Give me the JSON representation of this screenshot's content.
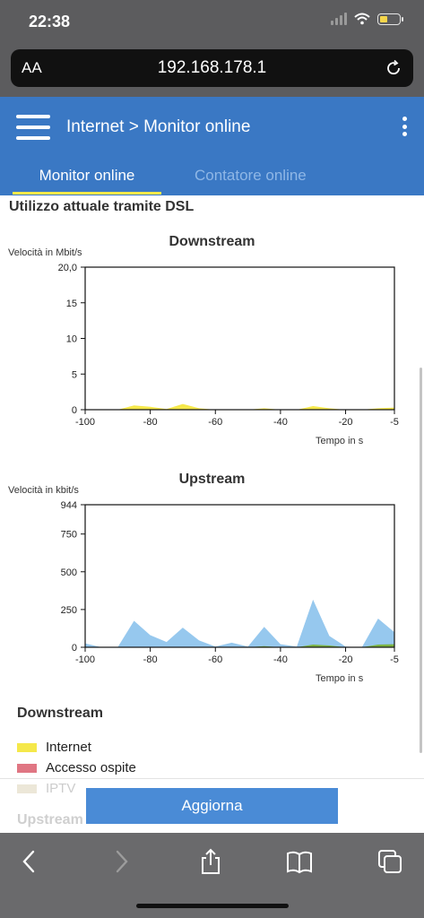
{
  "status_bar": {
    "time": "22:38"
  },
  "browser": {
    "aa_label": "AA",
    "url": "192.168.178.1"
  },
  "header": {
    "breadcrumb": "Internet > Monitor online",
    "tabs": [
      {
        "label": "Monitor online",
        "active": true
      },
      {
        "label": "Contatore online",
        "active": false
      }
    ]
  },
  "section": {
    "title": "Utilizzo attuale tramite DSL"
  },
  "charts": {
    "downstream": {
      "title": "Downstream",
      "ylabel": "Velocità in Mbit/s",
      "xlabel": "Tempo in s"
    },
    "upstream": {
      "title": "Upstream",
      "ylabel": "Velocità in kbit/s",
      "xlabel": "Tempo in s"
    }
  },
  "chart_data": [
    {
      "type": "area",
      "title": "Downstream",
      "xlabel": "Tempo in s",
      "ylabel": "Velocità in Mbit/s",
      "xlim": [
        -100,
        -5
      ],
      "ylim": [
        0,
        20
      ],
      "x_ticks": [
        "-100",
        "-80",
        "-60",
        "-40",
        "-20",
        "-5"
      ],
      "y_ticks": [
        "0",
        "5",
        "10",
        "15",
        "20,0"
      ],
      "grid": false,
      "series": [
        {
          "name": "Internet",
          "color": "#f5e84a",
          "x": [
            -100,
            -90,
            -85,
            -80,
            -75,
            -70,
            -65,
            -60,
            -55,
            -50,
            -45,
            -40,
            -35,
            -30,
            -25,
            -20,
            -15,
            -10,
            -5
          ],
          "values": [
            0,
            0,
            0.6,
            0.4,
            0.1,
            0.8,
            0.2,
            0,
            0,
            0,
            0.2,
            0,
            0,
            0.5,
            0.2,
            0,
            0,
            0.2,
            0.3
          ]
        }
      ]
    },
    {
      "type": "area",
      "title": "Upstream",
      "xlabel": "Tempo in s",
      "ylabel": "Velocità in kbit/s",
      "xlim": [
        -100,
        -5
      ],
      "ylim": [
        0,
        944
      ],
      "x_ticks": [
        "-100",
        "-80",
        "-60",
        "-40",
        "-20",
        "-5"
      ],
      "y_ticks": [
        "0",
        "250",
        "500",
        "750",
        "944"
      ],
      "grid": false,
      "series": [
        {
          "name": "Internet",
          "color": "#96c8ee",
          "x": [
            -100,
            -95,
            -90,
            -85,
            -80,
            -75,
            -70,
            -65,
            -60,
            -55,
            -50,
            -45,
            -40,
            -35,
            -30,
            -25,
            -20,
            -15,
            -10,
            -5
          ],
          "values": [
            25,
            0,
            0,
            175,
            80,
            35,
            130,
            45,
            5,
            30,
            5,
            135,
            20,
            5,
            315,
            75,
            5,
            0,
            190,
            100
          ]
        },
        {
          "name": "Accesso ospite",
          "color": "#7cb342",
          "x": [
            -100,
            -50,
            -45,
            -40,
            -35,
            -30,
            -25,
            -20,
            -15,
            -10,
            -5
          ],
          "values": [
            0,
            0,
            8,
            0,
            0,
            18,
            12,
            0,
            0,
            18,
            20
          ]
        }
      ]
    }
  ],
  "legend": {
    "title": "Downstream",
    "items": [
      {
        "label": "Internet",
        "color": "#f5e84a"
      },
      {
        "label": "Accesso ospite",
        "color": "#e07683"
      },
      {
        "label": "IPTV",
        "color": "#e8e2d0"
      }
    ]
  },
  "upstream_heading": "Upstream",
  "refresh_button": "Aggiorna"
}
